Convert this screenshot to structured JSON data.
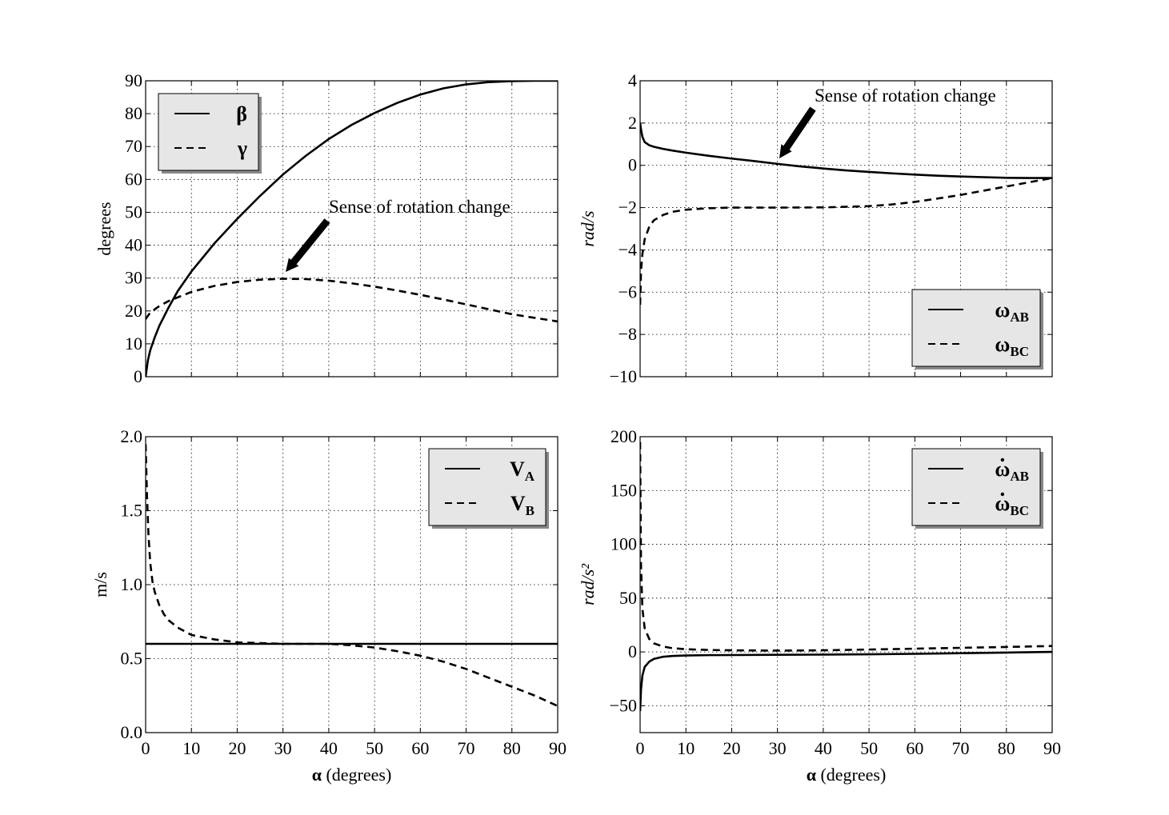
{
  "chart_data": [
    {
      "type": "line",
      "xlim": [
        0,
        90
      ],
      "ylim": [
        0,
        90
      ],
      "xticks": [
        "0",
        "10",
        "20",
        "30",
        "40",
        "50",
        "60",
        "70",
        "80",
        "90"
      ],
      "yticks": [
        "0",
        "10",
        "20",
        "30",
        "40",
        "50",
        "60",
        "70",
        "80",
        "90"
      ],
      "show_xtick_labels": false,
      "xlabel": "",
      "ylabel": "degrees",
      "ylabel_italic": false,
      "grid": true,
      "legend_position": "top-left",
      "annotation": {
        "text": "Sense of rotation change",
        "x": 31,
        "y": 31
      },
      "series": [
        {
          "name": "β",
          "sub": "",
          "dot": false,
          "style": "solid",
          "x": [
            0,
            0.5,
            1,
            2,
            3,
            5,
            7,
            10,
            15,
            20,
            25,
            30,
            35,
            40,
            45,
            50,
            55,
            60,
            65,
            70,
            75,
            80,
            85,
            90
          ],
          "y": [
            0,
            5,
            8,
            12,
            15.5,
            21,
            26,
            32,
            40.5,
            48,
            55,
            61.5,
            67.2,
            72.3,
            76.6,
            80.2,
            83.3,
            85.8,
            87.7,
            88.9,
            89.6,
            89.9,
            90,
            90
          ]
        },
        {
          "name": "γ",
          "sub": "",
          "dot": false,
          "style": "dashed",
          "x": [
            0,
            1,
            3,
            5,
            10,
            15,
            20,
            25,
            30,
            35,
            40,
            45,
            50,
            55,
            60,
            65,
            70,
            75,
            80,
            85,
            90
          ],
          "y": [
            17.5,
            19.5,
            21.5,
            23,
            25.8,
            27.6,
            28.8,
            29.5,
            29.8,
            29.7,
            29.2,
            28.4,
            27.4,
            26.2,
            24.9,
            23.5,
            22,
            20.5,
            19,
            17.9,
            16.8
          ]
        }
      ]
    },
    {
      "type": "line",
      "xlim": [
        0,
        90
      ],
      "ylim": [
        -10,
        4
      ],
      "xticks": [
        "0",
        "10",
        "20",
        "30",
        "40",
        "50",
        "60",
        "70",
        "80",
        "90"
      ],
      "yticks": [
        "−10",
        "−8",
        "−6",
        "−4",
        "−2",
        "0",
        "2",
        "4"
      ],
      "show_xtick_labels": false,
      "xlabel": "",
      "ylabel": "rad/s",
      "ylabel_italic": true,
      "grid": true,
      "legend_position": "bottom-right",
      "annotation": {
        "text": "Sense of rotation change",
        "x": 30,
        "y": 0.2
      },
      "series": [
        {
          "name": "ω",
          "sub": "AB",
          "dot": false,
          "style": "solid",
          "x": [
            0,
            0.2,
            0.5,
            1,
            2,
            3,
            5,
            7,
            10,
            15,
            20,
            25,
            30,
            35,
            40,
            45,
            50,
            55,
            60,
            65,
            70,
            75,
            80,
            85,
            90
          ],
          "y": [
            2,
            1.7,
            1.35,
            1.1,
            0.95,
            0.88,
            0.78,
            0.7,
            0.6,
            0.45,
            0.32,
            0.2,
            0.07,
            -0.05,
            -0.15,
            -0.24,
            -0.31,
            -0.38,
            -0.44,
            -0.49,
            -0.53,
            -0.56,
            -0.59,
            -0.6,
            -0.6
          ]
        },
        {
          "name": "ω",
          "sub": "BC",
          "dot": false,
          "style": "dashed",
          "x": [
            0,
            0.2,
            0.5,
            1,
            2,
            3,
            5,
            7,
            10,
            15,
            20,
            30,
            40,
            50,
            55,
            60,
            65,
            70,
            75,
            80,
            85,
            90
          ],
          "y": [
            -6.6,
            -5,
            -4.2,
            -3.5,
            -2.9,
            -2.6,
            -2.35,
            -2.2,
            -2.1,
            -2.03,
            -2,
            -2,
            -1.99,
            -1.93,
            -1.85,
            -1.73,
            -1.57,
            -1.4,
            -1.2,
            -1,
            -0.8,
            -0.6
          ]
        }
      ]
    },
    {
      "type": "line",
      "xlim": [
        0,
        90
      ],
      "ylim": [
        0,
        2
      ],
      "xticks": [
        "0",
        "10",
        "20",
        "30",
        "40",
        "50",
        "60",
        "70",
        "80",
        "90"
      ],
      "yticks": [
        "0.0",
        "0.5",
        "1.0",
        "1.5",
        "2.0"
      ],
      "show_xtick_labels": true,
      "xlabel": "α",
      "xlabel_suffix": " (degrees)",
      "ylabel": "m/s",
      "ylabel_italic": false,
      "grid": true,
      "legend_position": "top-right",
      "series": [
        {
          "name": "V",
          "sub": "A",
          "dot": false,
          "style": "solid",
          "x": [
            0,
            90
          ],
          "y": [
            0.6,
            0.6
          ]
        },
        {
          "name": "V",
          "sub": "B",
          "dot": false,
          "style": "dashed",
          "x": [
            0,
            0.3,
            0.6,
            1,
            1.5,
            2,
            3,
            4,
            5,
            7,
            10,
            15,
            20,
            30,
            40,
            45,
            50,
            55,
            60,
            65,
            70,
            75,
            80,
            85,
            90
          ],
          "y": [
            1.95,
            1.6,
            1.35,
            1.15,
            1.02,
            0.95,
            0.86,
            0.8,
            0.76,
            0.71,
            0.66,
            0.63,
            0.61,
            0.6,
            0.6,
            0.59,
            0.575,
            0.55,
            0.52,
            0.48,
            0.43,
            0.37,
            0.31,
            0.25,
            0.18
          ]
        }
      ]
    },
    {
      "type": "line",
      "xlim": [
        0,
        90
      ],
      "ylim": [
        -75,
        200
      ],
      "xticks": [
        "0",
        "10",
        "20",
        "30",
        "40",
        "50",
        "60",
        "70",
        "80",
        "90"
      ],
      "yticks": [
        "−50",
        "0",
        "50",
        "100",
        "150",
        "200"
      ],
      "ytick_values": [
        -50,
        0,
        50,
        100,
        150,
        200
      ],
      "show_xtick_labels": true,
      "xlabel": "α",
      "xlabel_suffix": " (degrees)",
      "ylabel": "rad/s²",
      "ylabel_italic": true,
      "grid": true,
      "legend_position": "top-right",
      "series": [
        {
          "name": "ω",
          "sub": "AB",
          "dot": true,
          "style": "solid",
          "x": [
            0,
            0.2,
            0.5,
            1,
            2,
            3,
            5,
            7,
            10,
            15,
            20,
            30,
            40,
            50,
            60,
            70,
            80,
            90
          ],
          "y": [
            -55,
            -35,
            -22,
            -14,
            -9,
            -6.5,
            -4.5,
            -3.8,
            -3.3,
            -3,
            -2.9,
            -2.7,
            -2.5,
            -2.2,
            -1.8,
            -1.2,
            -0.6,
            0
          ]
        },
        {
          "name": "ω",
          "sub": "BC",
          "dot": true,
          "style": "dashed",
          "x": [
            0,
            0.2,
            0.5,
            1,
            2,
            3,
            5,
            7,
            10,
            15,
            20,
            30,
            40,
            50,
            60,
            70,
            80,
            90
          ],
          "y": [
            195,
            80,
            40,
            22,
            12,
            8,
            5,
            3.5,
            2.5,
            1.8,
            1.5,
            1.2,
            1.5,
            2.2,
            3,
            3.8,
            4.6,
            5.5
          ]
        }
      ]
    }
  ]
}
